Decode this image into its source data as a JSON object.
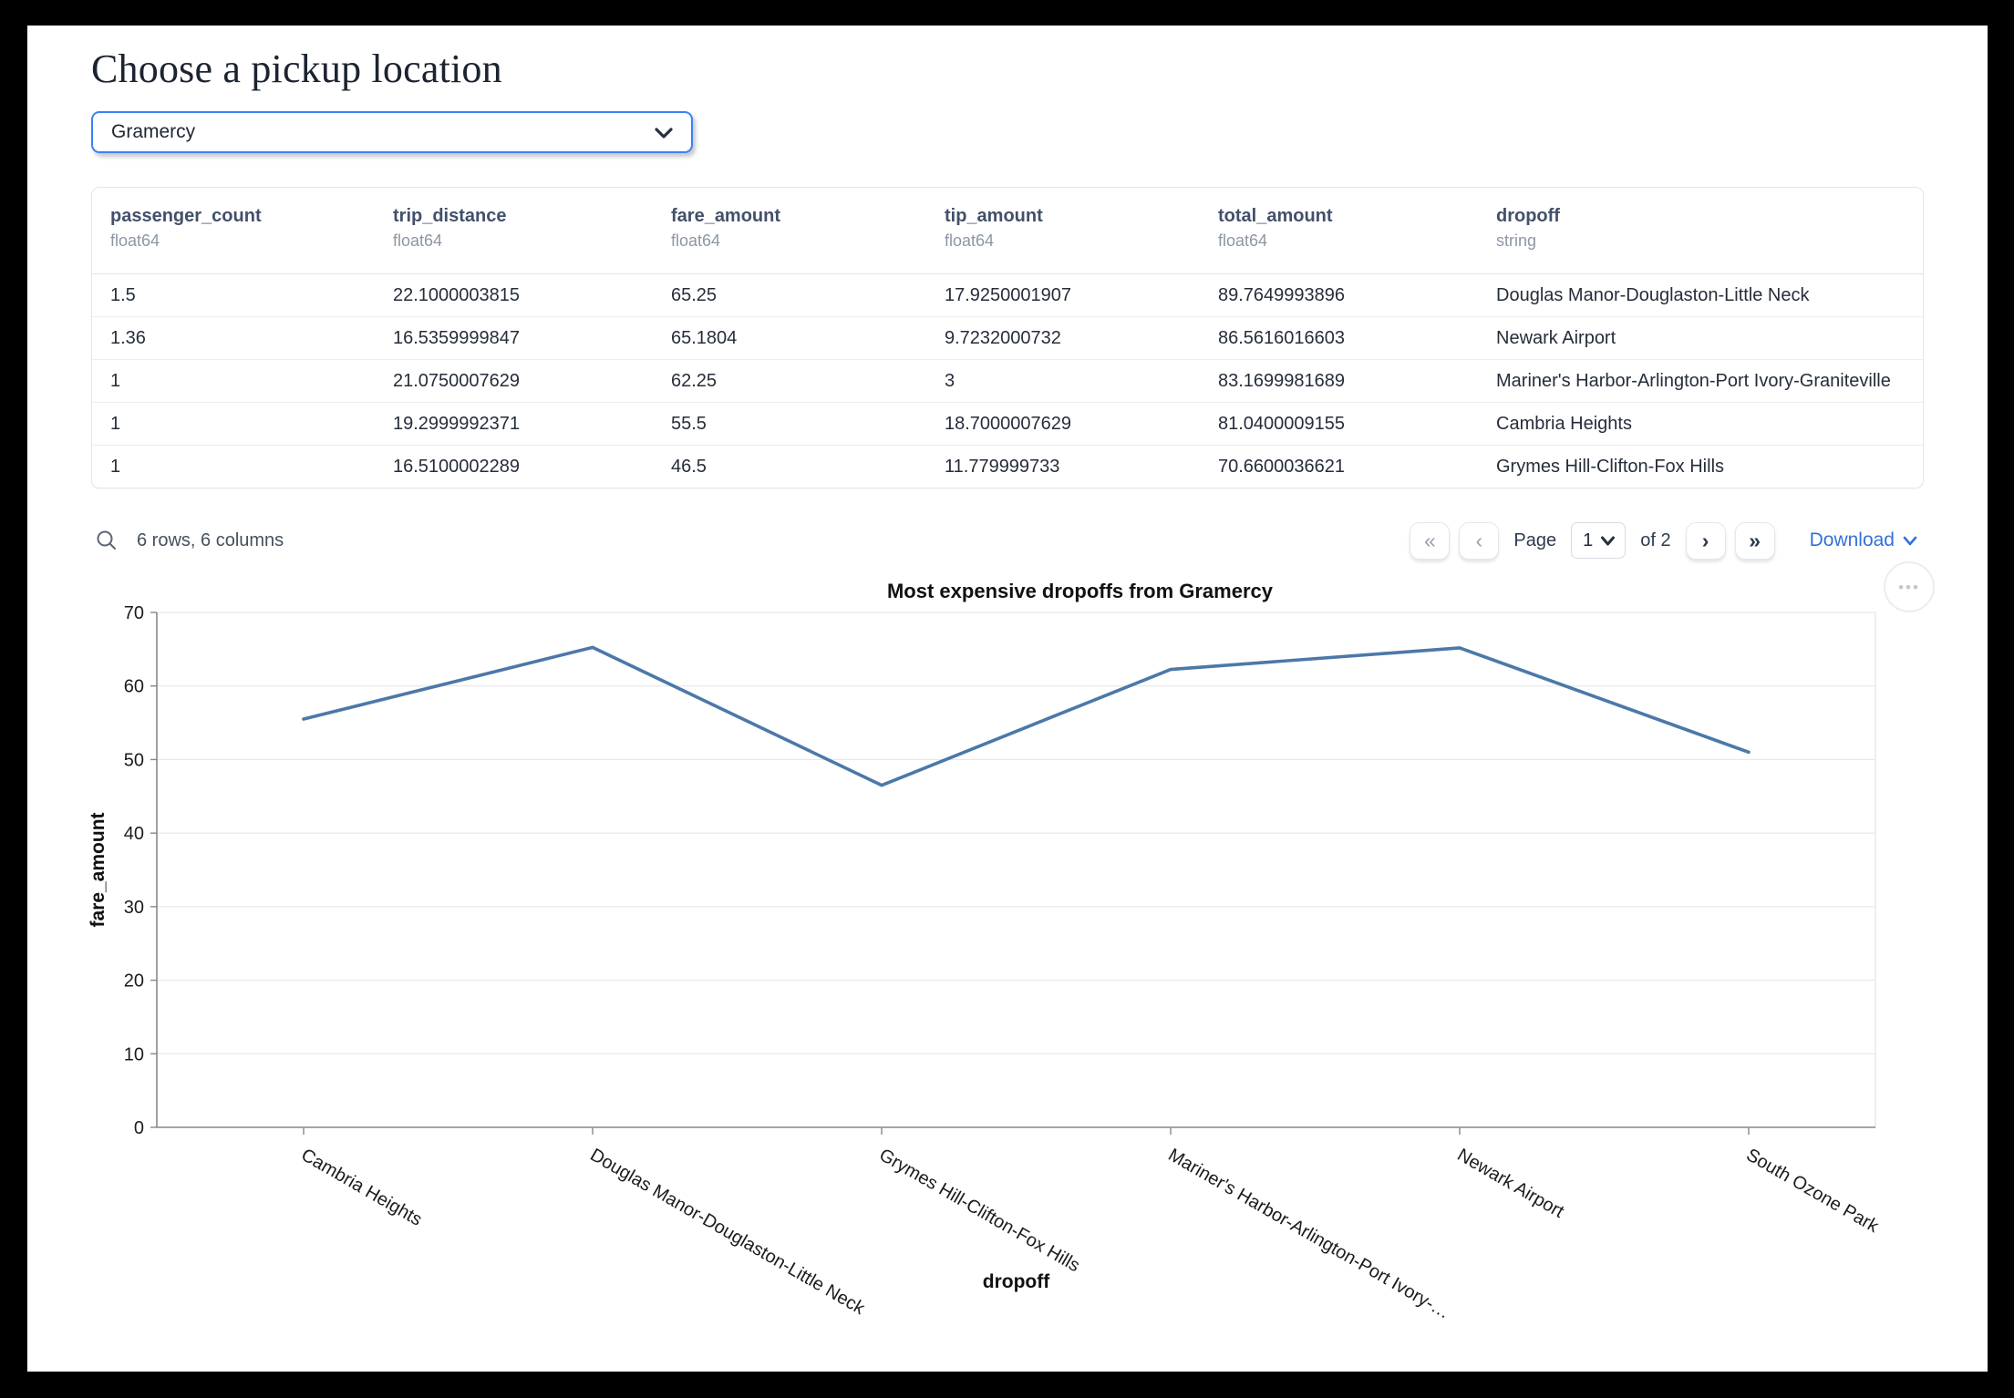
{
  "page": {
    "title": "Choose a pickup location"
  },
  "pickup_select": {
    "value": "Gramercy"
  },
  "table": {
    "columns": [
      {
        "name": "passenger_count",
        "type": "float64"
      },
      {
        "name": "trip_distance",
        "type": "float64"
      },
      {
        "name": "fare_amount",
        "type": "float64"
      },
      {
        "name": "tip_amount",
        "type": "float64"
      },
      {
        "name": "total_amount",
        "type": "float64"
      },
      {
        "name": "dropoff",
        "type": "string"
      }
    ],
    "rows": [
      [
        "1.5",
        "22.1000003815",
        "65.25",
        "17.9250001907",
        "89.7649993896",
        "Douglas Manor-Douglaston-Little Neck"
      ],
      [
        "1.36",
        "16.5359999847",
        "65.1804",
        "9.7232000732",
        "86.5616016603",
        "Newark Airport"
      ],
      [
        "1",
        "21.0750007629",
        "62.25",
        "3",
        "83.1699981689",
        "Mariner's Harbor-Arlington-Port Ivory-Graniteville"
      ],
      [
        "1",
        "19.2999992371",
        "55.5",
        "18.7000007629",
        "81.0400009155",
        "Cambria Heights"
      ],
      [
        "1",
        "16.5100002289",
        "46.5",
        "11.779999733",
        "70.6600036621",
        "Grymes Hill-Clifton-Fox Hills"
      ]
    ],
    "footer": {
      "summary": "6 rows, 6 columns"
    },
    "pagination": {
      "page_label": "Page",
      "current_page": "1",
      "of_label": "of 2",
      "download_label": "Download"
    }
  },
  "icons": {
    "first": "«",
    "prev": "‹",
    "next": "›",
    "last": "»",
    "menu_dots": "•••"
  },
  "colors": {
    "accent": "#3b82f6",
    "link": "#3272d9",
    "line": "#4c78a8"
  },
  "chart_data": {
    "type": "line",
    "title": "Most expensive dropoffs from Gramercy",
    "xlabel": "dropoff",
    "ylabel": "fare_amount",
    "categories": [
      "Cambria Heights",
      "Douglas Manor-Douglaston-Little Neck",
      "Grymes Hill-Clifton-Fox Hills",
      "Mariner's Harbor-Arlington-Port Ivory-…",
      "Newark Airport",
      "South Ozone Park"
    ],
    "values": [
      55.5,
      65.25,
      46.5,
      62.25,
      65.1804,
      51
    ],
    "ylim": [
      0,
      70
    ],
    "yticks": [
      0,
      10,
      20,
      30,
      40,
      50,
      60,
      70
    ],
    "grid": true,
    "legend": "none",
    "line_color": "#4c78a8"
  }
}
